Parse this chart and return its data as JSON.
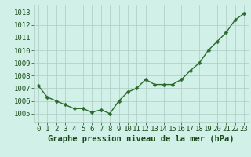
{
  "x": [
    0,
    1,
    2,
    3,
    4,
    5,
    6,
    7,
    8,
    9,
    10,
    11,
    12,
    13,
    14,
    15,
    16,
    17,
    18,
    19,
    20,
    21,
    22,
    23
  ],
  "y": [
    1007.2,
    1006.3,
    1006.0,
    1005.7,
    1005.4,
    1005.4,
    1005.1,
    1005.3,
    1005.0,
    1006.0,
    1006.7,
    1007.0,
    1007.7,
    1007.3,
    1007.3,
    1007.3,
    1007.7,
    1008.4,
    1009.0,
    1010.0,
    1010.7,
    1011.4,
    1012.4,
    1012.9
  ],
  "line_color": "#2d6a2d",
  "marker": "D",
  "marker_size": 2.5,
  "line_width": 1.0,
  "bg_color": "#d0f0e8",
  "grid_color": "#b0ccc4",
  "xlabel": "Graphe pression niveau de la mer (hPa)",
  "xlabel_color": "#1a4a1a",
  "xlabel_fontsize": 7.5,
  "ytick_values": [
    1005,
    1006,
    1007,
    1008,
    1009,
    1010,
    1011,
    1012,
    1013
  ],
  "ylim": [
    1004.3,
    1013.6
  ],
  "xlim": [
    -0.5,
    23.5
  ],
  "xtick_labels": [
    "0",
    "1",
    "2",
    "3",
    "4",
    "5",
    "6",
    "7",
    "8",
    "9",
    "10",
    "11",
    "12",
    "13",
    "14",
    "15",
    "16",
    "17",
    "18",
    "19",
    "20",
    "21",
    "22",
    "23"
  ],
  "tick_color": "#1a4a1a",
  "tick_fontsize": 6.5
}
